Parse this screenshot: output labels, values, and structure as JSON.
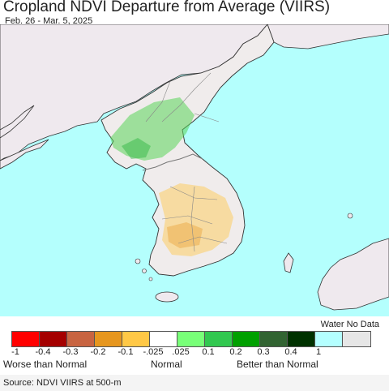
{
  "header": {
    "title": "Cropland NDVI Departure from Average (VIIRS)",
    "date_range": "Feb. 26 - Mar. 5, 2025"
  },
  "map": {
    "colors": {
      "sea": "#b4fffd",
      "foreign_land": "#efe9ee",
      "korea_land": "#f0ecec",
      "border": "#777777",
      "coast": "#333333"
    }
  },
  "legend": {
    "water_label": "Water No Data",
    "swatches": [
      {
        "color": "#ff0000"
      },
      {
        "color": "#a50000"
      },
      {
        "color": "#c86441"
      },
      {
        "color": "#e6961e"
      },
      {
        "color": "#ffc846"
      },
      {
        "color": "#ffffff"
      },
      {
        "color": "#78ff78"
      },
      {
        "color": "#32c850"
      },
      {
        "color": "#00a000"
      },
      {
        "color": "#326432"
      },
      {
        "color": "#003200"
      },
      {
        "color": "#b4ffff"
      },
      {
        "color": "#e6e6e6"
      }
    ],
    "ticks": [
      "-1",
      "-0.4",
      "-0.3",
      "-0.2",
      "-0.1",
      "-.025",
      ".025",
      "0.1",
      "0.2",
      "0.3",
      "0.4",
      "1"
    ],
    "categories": {
      "worse": "Worse than Normal",
      "normal": "Normal",
      "better": "Better than Normal"
    }
  },
  "footer": {
    "source": "Source: NDVI VIIRS at 500-m"
  }
}
